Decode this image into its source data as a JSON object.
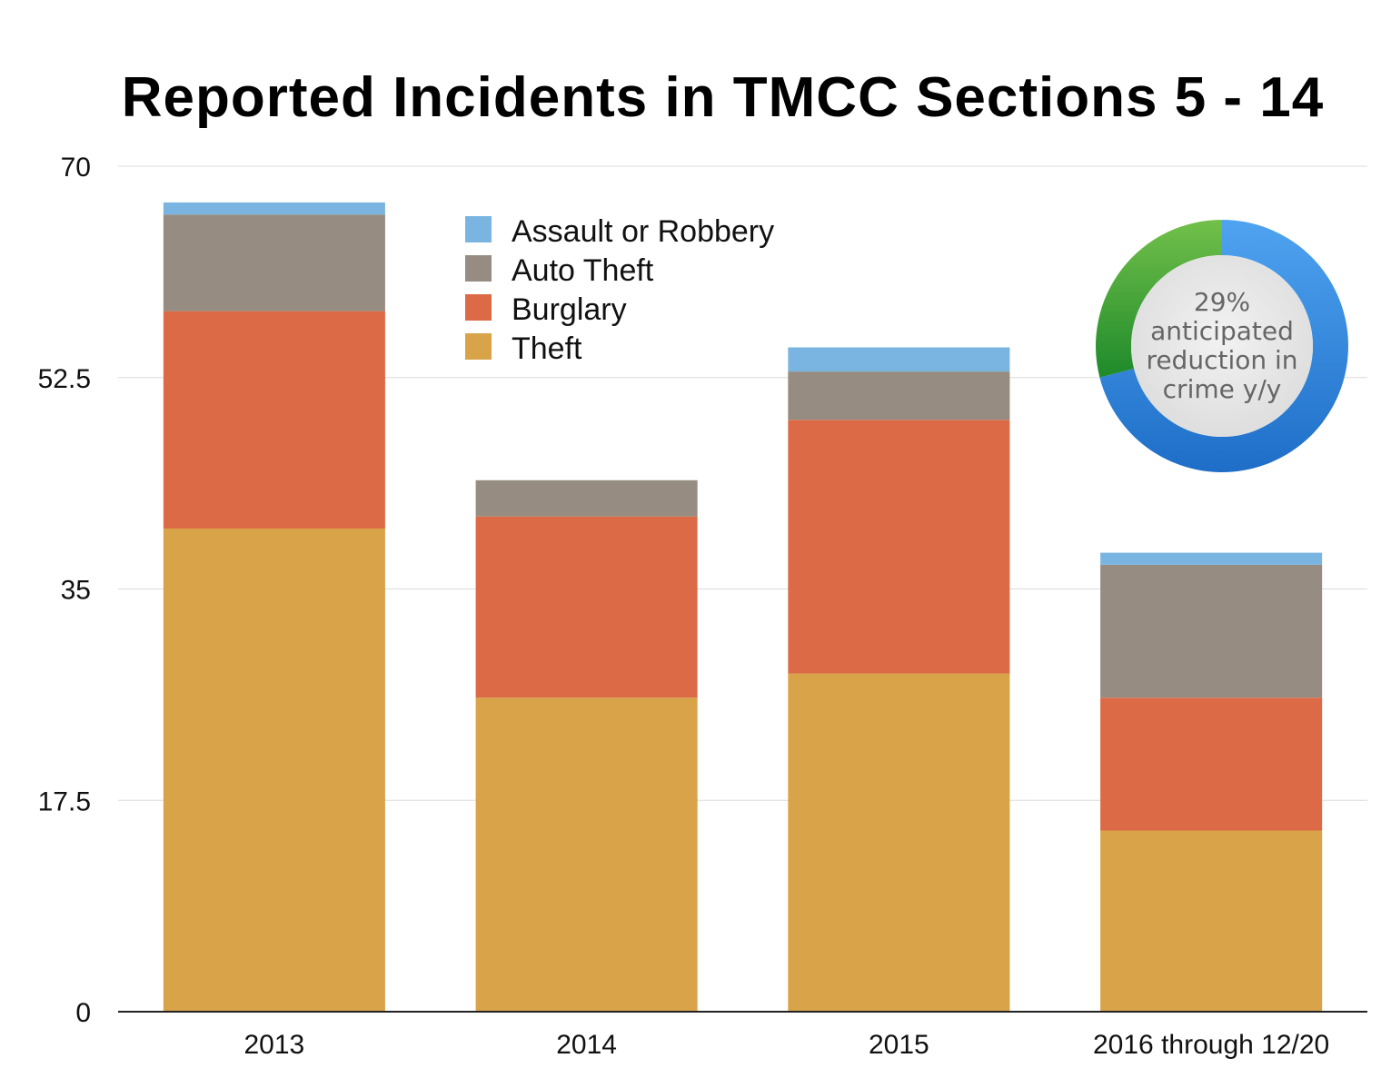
{
  "chart_data": {
    "type": "bar",
    "stacked": true,
    "title": "Reported Incidents in TMCC Sections 5 - 14",
    "categories": [
      "2013",
      "2014",
      "2015",
      "2016 through 12/20"
    ],
    "series": [
      {
        "name": "Theft",
        "color": "#D9A34A",
        "values": [
          40,
          26,
          28,
          15
        ]
      },
      {
        "name": "Burglary",
        "color": "#DD6A46",
        "values": [
          18,
          15,
          21,
          11
        ]
      },
      {
        "name": "Auto Theft",
        "color": "#978C81",
        "values": [
          8,
          3,
          4,
          11
        ]
      },
      {
        "name": "Assault or Robbery",
        "color": "#7AB5E1",
        "values": [
          1,
          0,
          2,
          1
        ]
      }
    ],
    "ylim": [
      0,
      70
    ],
    "yticks": [
      "0",
      "17.5",
      "35",
      "52.5",
      "70"
    ],
    "xlabel": "",
    "ylabel": "",
    "legend_order": [
      "Assault or Robbery",
      "Auto Theft",
      "Burglary",
      "Theft"
    ],
    "grid": true
  },
  "callout": {
    "line1": "29%",
    "line2": "anticipated",
    "line3": "reduction in",
    "line4": "crime y/y",
    "percent": 29
  }
}
